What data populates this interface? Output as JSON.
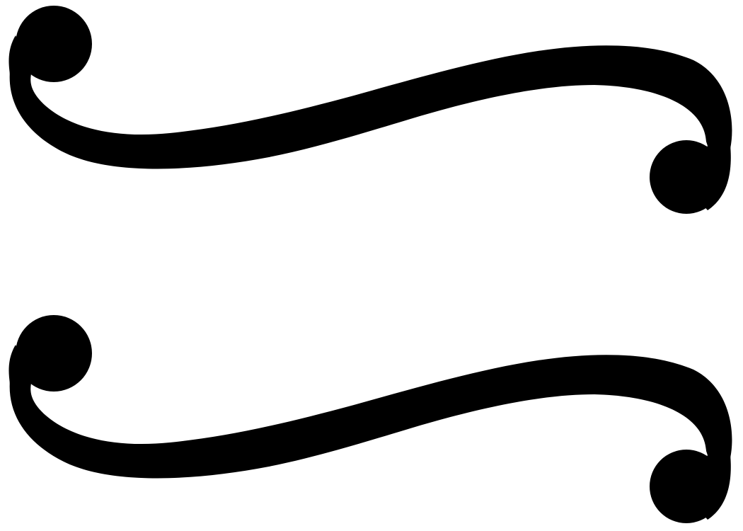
{
  "symbol": {
    "icon": "approximately-equal-swash-icon",
    "color": "#000000",
    "background": "#ffffff",
    "strokes": 2
  }
}
